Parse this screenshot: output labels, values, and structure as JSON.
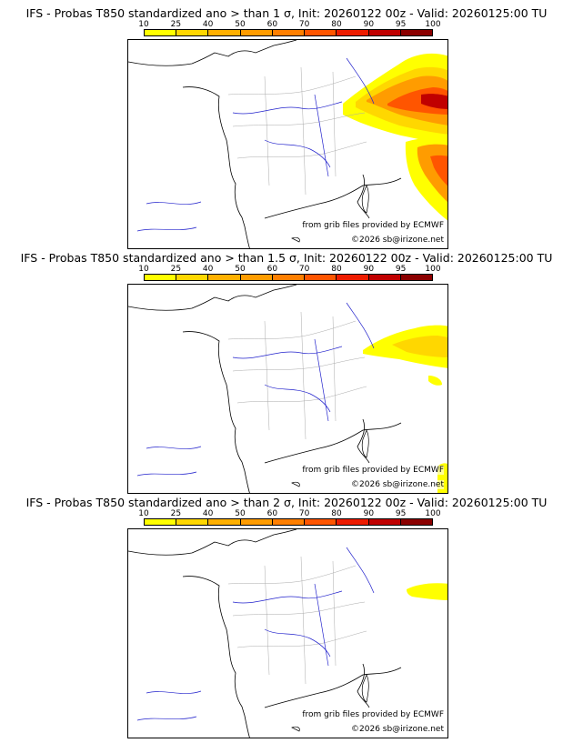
{
  "colorbar": {
    "ticks": [
      "10",
      "25",
      "40",
      "50",
      "60",
      "70",
      "80",
      "90",
      "95",
      "100"
    ],
    "colors": [
      "#ffff00",
      "#ffd700",
      "#ffb000",
      "#ff9c00",
      "#ff7f00",
      "#ff5500",
      "#ee1c00",
      "#c00000",
      "#8b0000"
    ]
  },
  "credits": {
    "source": "from grib files provided by ECMWF",
    "copyright": "©2026 sb@irizone.net"
  },
  "panels": [
    {
      "title": "IFS - Probas T850  standardized ano > than 1 σ, Init: 20260122 00z - Valid: 20260125:00 TU",
      "threshold": "1 σ",
      "intensity": "high"
    },
    {
      "title": "IFS - Probas T850  standardized ano > than 1.5 σ, Init: 20260122 00z - Valid: 20260125:00 TU",
      "threshold": "1.5 σ",
      "intensity": "medium"
    },
    {
      "title": "IFS - Probas T850  standardized ano > than 2 σ, Init: 20260122 00z - Valid: 20260125:00 TU",
      "threshold": "2 σ",
      "intensity": "low"
    }
  ]
}
